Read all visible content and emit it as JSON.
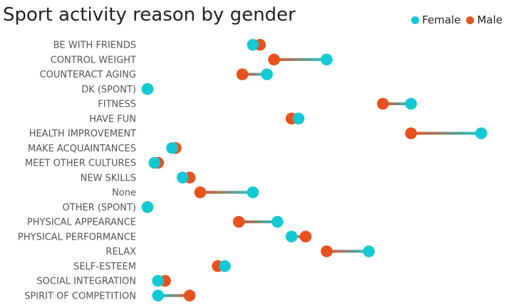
{
  "chart_data": {
    "type": "dumbbell",
    "title": "Sport activity reason by gender",
    "series": [
      {
        "name": "Female",
        "color": "#12C9D4"
      },
      {
        "name": "Male",
        "color": "#E8501E"
      }
    ],
    "legend_position": "top-right",
    "categories": [
      "BE WITH FRIENDS",
      "CONTROL WEIGHT",
      "COUNTERACT AGING",
      "DK (SPONT)",
      "FITNESS",
      "HAVE FUN",
      "HEALTH IMPROVEMENT",
      "MAKE ACQUAINTANCES",
      "MEET OTHER CULTURES",
      "NEW SKILLS",
      "None",
      "OTHER (SPONT)",
      "PHYSICAL APPEARANCE",
      "PHYSICAL PERFORMANCE",
      "RELAX",
      "SELF-ESTEEM",
      "SOCIAL INTEGRATION",
      "SPIRIT OF COMPETITION"
    ],
    "female": [
      31,
      52,
      35,
      1,
      76,
      44,
      96,
      8,
      3,
      11,
      31,
      1,
      38,
      42,
      64,
      23,
      4,
      4
    ],
    "male": [
      33,
      37,
      28,
      1,
      68,
      42,
      76,
      9,
      4,
      13,
      16,
      1,
      27,
      46,
      52,
      21,
      6,
      13
    ],
    "xlim": [
      0,
      100
    ],
    "grid": false
  }
}
